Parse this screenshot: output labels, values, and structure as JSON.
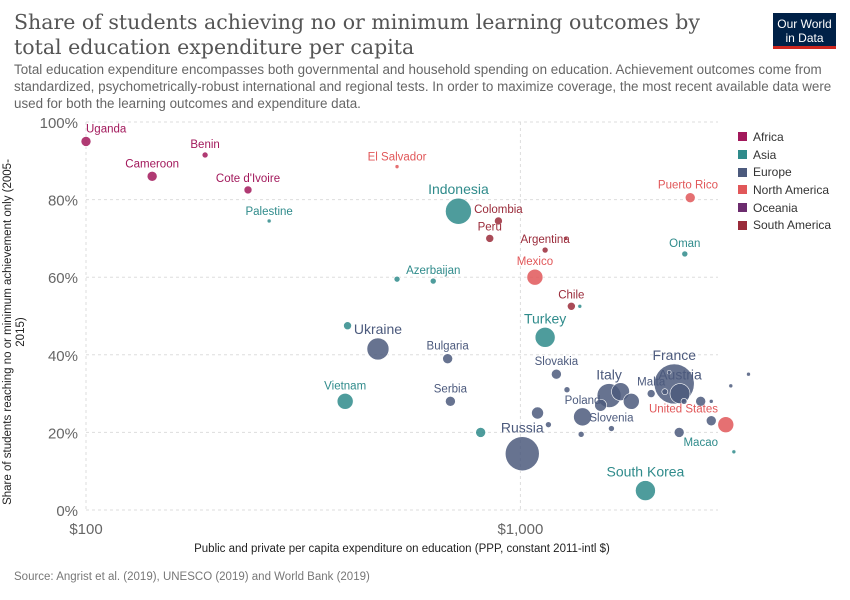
{
  "header": {
    "title": "Share of students achieving no or minimum learning outcomes by total education expenditure per capita",
    "subtitle": "Total education expenditure encompasses both governmental and household spending on education. Achievement outcomes come from standardized, psychometrically-robust international and regional tests. In order to maximize coverage, the most recent available data were used for both the learning outcomes and expenditure data.",
    "logo_line1": "Our World",
    "logo_line2": "in Data",
    "source": "Source: Angrist et al. (2019), UNESCO (2019) and World Bank (2019)"
  },
  "chart_data": {
    "type": "scatter",
    "x_scale": "log",
    "xlabel": "Public and private per capita expenditure on education (PPP, constant 2011-intl $)",
    "ylabel": "Share of students reaching no or minimum achievement only (2005-2015)",
    "xlim": [
      100,
      2850
    ],
    "ylim": [
      0,
      100
    ],
    "x_ticks": [
      100,
      1000
    ],
    "x_tick_labels": [
      "$100",
      "$1,000"
    ],
    "y_ticks": [
      0,
      20,
      40,
      60,
      80,
      100
    ],
    "y_tick_labels": [
      "0%",
      "20%",
      "40%",
      "60%",
      "80%",
      "100%"
    ],
    "grid": true,
    "legend_position": "right",
    "legend": [
      {
        "name": "Africa",
        "color": "#a2185b"
      },
      {
        "name": "Asia",
        "color": "#2f8b8b"
      },
      {
        "name": "Europe",
        "color": "#4c5a7d"
      },
      {
        "name": "North America",
        "color": "#e15759"
      },
      {
        "name": "Oceania",
        "color": "#6c2c6e"
      },
      {
        "name": "South America",
        "color": "#9a2b3a"
      }
    ],
    "points": [
      {
        "label": "Uganda",
        "x": 100,
        "y": 95,
        "region": "Africa",
        "size": 5
      },
      {
        "label": "Benin",
        "x": 188,
        "y": 91.5,
        "region": "Africa",
        "size": 3
      },
      {
        "label": "Cameroon",
        "x": 142,
        "y": 86,
        "region": "Africa",
        "size": 5
      },
      {
        "label": "Cote d'Ivoire",
        "x": 236,
        "y": 82.5,
        "region": "Africa",
        "size": 4
      },
      {
        "label": "El Salvador",
        "x": 520,
        "y": 88.5,
        "region": "North America",
        "size": 2
      },
      {
        "label": "Palestine",
        "x": 264,
        "y": 74.5,
        "region": "Asia",
        "size": 2
      },
      {
        "label": "Indonesia",
        "x": 720,
        "y": 77,
        "region": "Asia",
        "size": 13
      },
      {
        "label": "Colombia",
        "x": 890,
        "y": 74.5,
        "region": "South America",
        "size": 4
      },
      {
        "label": "Peru",
        "x": 850,
        "y": 70,
        "region": "South America",
        "size": 4
      },
      {
        "label": "Argentina",
        "x": 1140,
        "y": 67,
        "region": "South America",
        "size": 3
      },
      {
        "label": "",
        "x": 1270,
        "y": 70,
        "region": "South America",
        "size": 2
      },
      {
        "label": "Mexico",
        "x": 1080,
        "y": 60,
        "region": "North America",
        "size": 8
      },
      {
        "label": "Azerbaijan",
        "x": 630,
        "y": 59,
        "region": "Asia",
        "size": 3
      },
      {
        "label": "",
        "x": 520,
        "y": 59.5,
        "region": "Asia",
        "size": 3
      },
      {
        "label": "Puerto Rico",
        "x": 2460,
        "y": 80.5,
        "region": "North America",
        "size": 5
      },
      {
        "label": "Oman",
        "x": 2390,
        "y": 66,
        "region": "Asia",
        "size": 3
      },
      {
        "label": "Chile",
        "x": 1310,
        "y": 52.5,
        "region": "South America",
        "size": 4
      },
      {
        "label": "",
        "x": 1370,
        "y": 52.5,
        "region": "Asia",
        "size": 2
      },
      {
        "label": "Turkey",
        "x": 1140,
        "y": 44.5,
        "region": "Asia",
        "size": 10
      },
      {
        "label": "",
        "x": 400,
        "y": 47.5,
        "region": "Asia",
        "size": 4
      },
      {
        "label": "Ukraine",
        "x": 470,
        "y": 41.5,
        "region": "Europe",
        "size": 11
      },
      {
        "label": "Bulgaria",
        "x": 680,
        "y": 39,
        "region": "Europe",
        "size": 5
      },
      {
        "label": "Slovakia",
        "x": 1210,
        "y": 35,
        "region": "Europe",
        "size": 5
      },
      {
        "label": "",
        "x": 1280,
        "y": 31,
        "region": "Europe",
        "size": 3
      },
      {
        "label": "Vietnam",
        "x": 395,
        "y": 28,
        "region": "Asia",
        "size": 8
      },
      {
        "label": "Serbia",
        "x": 690,
        "y": 28,
        "region": "Europe",
        "size": 5
      },
      {
        "label": "Poland",
        "x": 1390,
        "y": 24,
        "region": "Europe",
        "size": 9
      },
      {
        "label": "",
        "x": 1095,
        "y": 25,
        "region": "Europe",
        "size": 6
      },
      {
        "label": "",
        "x": 1160,
        "y": 22,
        "region": "Europe",
        "size": 3
      },
      {
        "label": "",
        "x": 1380,
        "y": 19.5,
        "region": "Europe",
        "size": 3
      },
      {
        "label": "Slovenia",
        "x": 1620,
        "y": 21,
        "region": "Europe",
        "size": 3
      },
      {
        "label": "",
        "x": 810,
        "y": 20,
        "region": "Asia",
        "size": 5
      },
      {
        "label": "Italy",
        "x": 1600,
        "y": 29.5,
        "region": "Europe",
        "size": 12
      },
      {
        "label": "",
        "x": 1700,
        "y": 30.5,
        "region": "Europe",
        "size": 9
      },
      {
        "label": "",
        "x": 1800,
        "y": 28,
        "region": "Europe",
        "size": 8
      },
      {
        "label": "",
        "x": 1530,
        "y": 27,
        "region": "Europe",
        "size": 6
      },
      {
        "label": "France",
        "x": 2260,
        "y": 32.5,
        "region": "Europe",
        "size": 20
      },
      {
        "label": "Malta",
        "x": 2000,
        "y": 30,
        "region": "Europe",
        "size": 4
      },
      {
        "label": "Austria",
        "x": 2330,
        "y": 30,
        "region": "Europe",
        "size": 10
      },
      {
        "label": "",
        "x": 2200,
        "y": 35.5,
        "region": "Europe",
        "size": 2
      },
      {
        "label": "",
        "x": 2150,
        "y": 30.5,
        "region": "Europe",
        "size": 3
      },
      {
        "label": "",
        "x": 2380,
        "y": 28,
        "region": "Europe",
        "size": 3
      },
      {
        "label": "",
        "x": 2600,
        "y": 28,
        "region": "Europe",
        "size": 5
      },
      {
        "label": "",
        "x": 2750,
        "y": 28,
        "region": "Europe",
        "size": 2
      },
      {
        "label": "",
        "x": 2750,
        "y": 23,
        "region": "Europe",
        "size": 5
      },
      {
        "label": "",
        "x": 3050,
        "y": 32,
        "region": "Europe",
        "size": 2
      },
      {
        "label": "",
        "x": 3350,
        "y": 35,
        "region": "Europe",
        "size": 2
      },
      {
        "label": "",
        "x": 2320,
        "y": 20,
        "region": "Europe",
        "size": 5
      },
      {
        "label": "United States",
        "x": 2970,
        "y": 22,
        "region": "North America",
        "size": 8
      },
      {
        "label": "Russia",
        "x": 1010,
        "y": 14.5,
        "region": "Europe",
        "size": 17
      },
      {
        "label": "Macao",
        "x": 3100,
        "y": 15,
        "region": "Asia",
        "size": 2
      },
      {
        "label": "South Korea",
        "x": 1940,
        "y": 5,
        "region": "Asia",
        "size": 10
      }
    ]
  }
}
